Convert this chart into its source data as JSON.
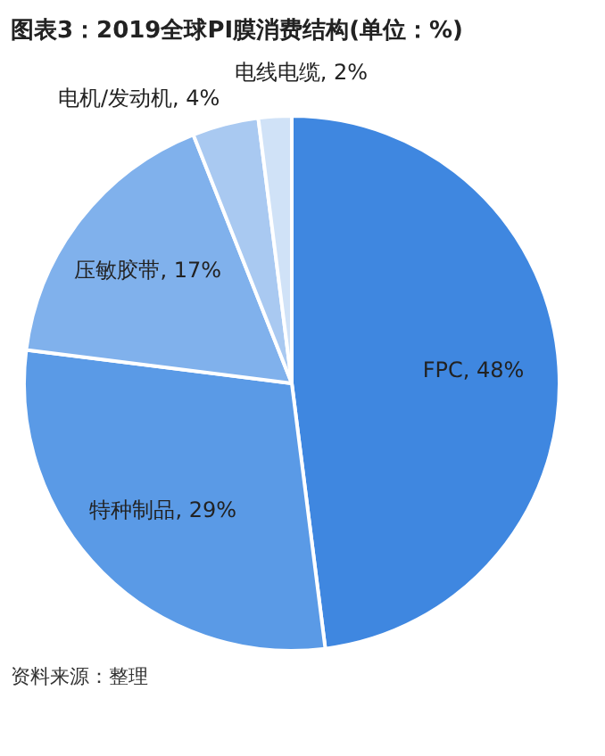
{
  "chart_data": {
    "type": "pie",
    "title": "图表3：2019全球PI膜消费结构(单位：%)",
    "categories": [
      "FPC",
      "特种制品",
      "压敏胶带",
      "电机/发动机",
      "电线电缆"
    ],
    "values": [
      48,
      29,
      17,
      4,
      2
    ],
    "value_labels": [
      "48%",
      "29%",
      "17%",
      "4%",
      "2%"
    ],
    "colors": [
      "#3f87e0",
      "#5a9ae6",
      "#80b1ec",
      "#a9c9f1",
      "#d0e2f7"
    ],
    "legend": false,
    "annotations": [
      "资料来源：整理"
    ]
  }
}
